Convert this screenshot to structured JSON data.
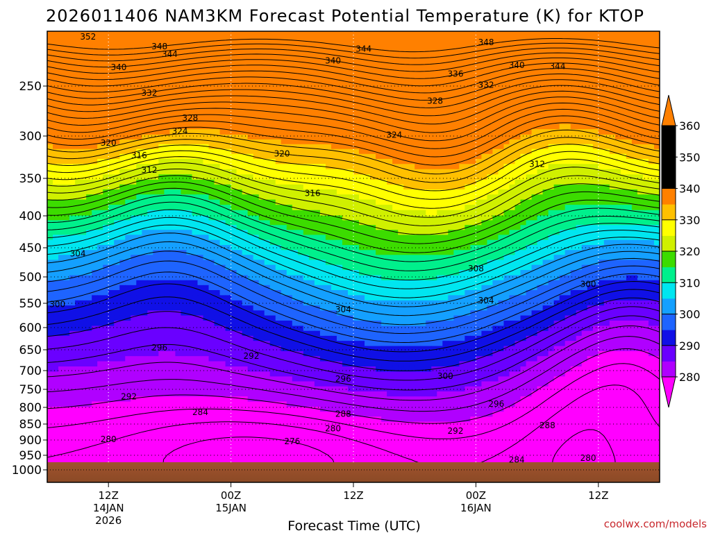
{
  "chart_data": {
    "type": "filled-contour",
    "title": "2026011406 NAM3KM Forecast Potential Temperature (K) for KTOP",
    "xlabel": "Forecast Time (UTC)",
    "ylabel": "",
    "credit": "coolwx.com/models",
    "y_axis": {
      "scale": "pressure (log-like, inverted)",
      "ylim": [
        1000,
        200
      ],
      "ticks": [
        250,
        300,
        350,
        400,
        450,
        500,
        550,
        600,
        650,
        700,
        750,
        800,
        850,
        900,
        950,
        1000
      ]
    },
    "x_axis": {
      "forecast_hours_range": [
        0,
        60
      ],
      "ticks": [
        {
          "hour": 6,
          "label": "12Z",
          "sub1": "14JAN",
          "sub2": "2026"
        },
        {
          "hour": 18,
          "label": "00Z",
          "sub1": "15JAN",
          "sub2": ""
        },
        {
          "hour": 30,
          "label": "12Z",
          "sub1": "",
          "sub2": ""
        },
        {
          "hour": 42,
          "label": "00Z",
          "sub1": "16JAN",
          "sub2": ""
        },
        {
          "hour": 54,
          "label": "12Z",
          "sub1": "",
          "sub2": ""
        }
      ]
    },
    "colorbar": {
      "levels": [
        280,
        290,
        300,
        310,
        320,
        330,
        340,
        350,
        360
      ],
      "colors": [
        "#ff00ff",
        "#b000ff",
        "#6a00ff",
        "#1010e6",
        "#1e64ff",
        "#14a0ff",
        "#00e6f0",
        "#00f08c",
        "#3cdc00",
        "#d0f000",
        "#ffff00",
        "#ffc000",
        "#ff8000"
      ],
      "extend": "both"
    },
    "contour_interval": 2,
    "contour_labels": [
      {
        "v": 352,
        "hour": 4,
        "p": 205
      },
      {
        "v": 348,
        "hour": 11,
        "p": 214
      },
      {
        "v": 348,
        "hour": 43,
        "p": 210
      },
      {
        "v": 344,
        "hour": 12,
        "p": 221
      },
      {
        "v": 344,
        "hour": 31,
        "p": 216
      },
      {
        "v": 344,
        "hour": 50,
        "p": 232
      },
      {
        "v": 340,
        "hour": 7,
        "p": 233
      },
      {
        "v": 340,
        "hour": 28,
        "p": 227
      },
      {
        "v": 340,
        "hour": 46,
        "p": 231
      },
      {
        "v": 336,
        "hour": 40,
        "p": 239
      },
      {
        "v": 332,
        "hour": 10,
        "p": 257
      },
      {
        "v": 332,
        "hour": 43,
        "p": 249
      },
      {
        "v": 328,
        "hour": 14,
        "p": 282
      },
      {
        "v": 328,
        "hour": 38,
        "p": 265
      },
      {
        "v": 324,
        "hour": 13,
        "p": 295
      },
      {
        "v": 324,
        "hour": 34,
        "p": 299
      },
      {
        "v": 320,
        "hour": 6,
        "p": 308
      },
      {
        "v": 320,
        "hour": 23,
        "p": 321
      },
      {
        "v": 316,
        "hour": 9,
        "p": 323
      },
      {
        "v": 316,
        "hour": 26,
        "p": 370
      },
      {
        "v": 312,
        "hour": 10,
        "p": 340
      },
      {
        "v": 312,
        "hour": 48,
        "p": 333
      },
      {
        "v": 308,
        "hour": 42,
        "p": 486
      },
      {
        "v": 304,
        "hour": 3,
        "p": 460
      },
      {
        "v": 304,
        "hour": 29,
        "p": 563
      },
      {
        "v": 304,
        "hour": 43,
        "p": 545
      },
      {
        "v": 300,
        "hour": 1,
        "p": 552
      },
      {
        "v": 300,
        "hour": 39,
        "p": 715
      },
      {
        "v": 300,
        "hour": 53,
        "p": 514
      },
      {
        "v": 296,
        "hour": 11,
        "p": 645
      },
      {
        "v": 296,
        "hour": 29,
        "p": 722
      },
      {
        "v": 296,
        "hour": 44,
        "p": 790
      },
      {
        "v": 292,
        "hour": 20,
        "p": 665
      },
      {
        "v": 292,
        "hour": 8,
        "p": 770
      },
      {
        "v": 292,
        "hour": 40,
        "p": 872
      },
      {
        "v": 288,
        "hour": 29,
        "p": 820
      },
      {
        "v": 288,
        "hour": 49,
        "p": 854
      },
      {
        "v": 284,
        "hour": 15,
        "p": 815
      },
      {
        "v": 284,
        "hour": 46,
        "p": 965
      },
      {
        "v": 280,
        "hour": 6,
        "p": 898
      },
      {
        "v": 280,
        "hour": 28,
        "p": 864
      },
      {
        "v": 280,
        "hour": 53,
        "p": 960
      },
      {
        "v": 276,
        "hour": 24,
        "p": 905
      }
    ]
  }
}
